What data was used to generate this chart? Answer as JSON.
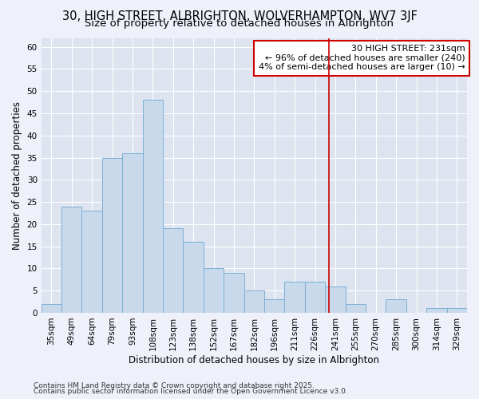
{
  "title": "30, HIGH STREET, ALBRIGHTON, WOLVERHAMPTON, WV7 3JF",
  "subtitle": "Size of property relative to detached houses in Albrighton",
  "xlabel": "Distribution of detached houses by size in Albrighton",
  "ylabel": "Number of detached properties",
  "bar_labels": [
    "35sqm",
    "49sqm",
    "64sqm",
    "79sqm",
    "93sqm",
    "108sqm",
    "123sqm",
    "138sqm",
    "152sqm",
    "167sqm",
    "182sqm",
    "196sqm",
    "211sqm",
    "226sqm",
    "241sqm",
    "255sqm",
    "270sqm",
    "285sqm",
    "300sqm",
    "314sqm",
    "329sqm"
  ],
  "bar_values": [
    2,
    24,
    23,
    35,
    36,
    48,
    19,
    16,
    10,
    9,
    5,
    3,
    7,
    7,
    6,
    2,
    0,
    3,
    0,
    1,
    1
  ],
  "bar_color": "#c9d9ec",
  "bar_edge_color": "#7bafd4",
  "vline_x": 13.7,
  "vline_color": "#cc0000",
  "annotation_title": "30 HIGH STREET: 231sqm",
  "annotation_line1": "← 96% of detached houses are smaller (240)",
  "annotation_line2": "4% of semi-detached houses are larger (10) →",
  "annotation_box_color": "#cc0000",
  "ylim": [
    0,
    62
  ],
  "yticks": [
    0,
    5,
    10,
    15,
    20,
    25,
    30,
    35,
    40,
    45,
    50,
    55,
    60
  ],
  "background_color": "#eef1fa",
  "plot_bg_color": "#dde4f0",
  "grid_color": "#ffffff",
  "footer1": "Contains HM Land Registry data © Crown copyright and database right 2025.",
  "footer2": "Contains public sector information licensed under the Open Government Licence v3.0.",
  "title_fontsize": 10.5,
  "subtitle_fontsize": 9.5,
  "axis_label_fontsize": 8.5,
  "tick_fontsize": 7.5,
  "annotation_fontsize": 8,
  "footer_fontsize": 6.5
}
